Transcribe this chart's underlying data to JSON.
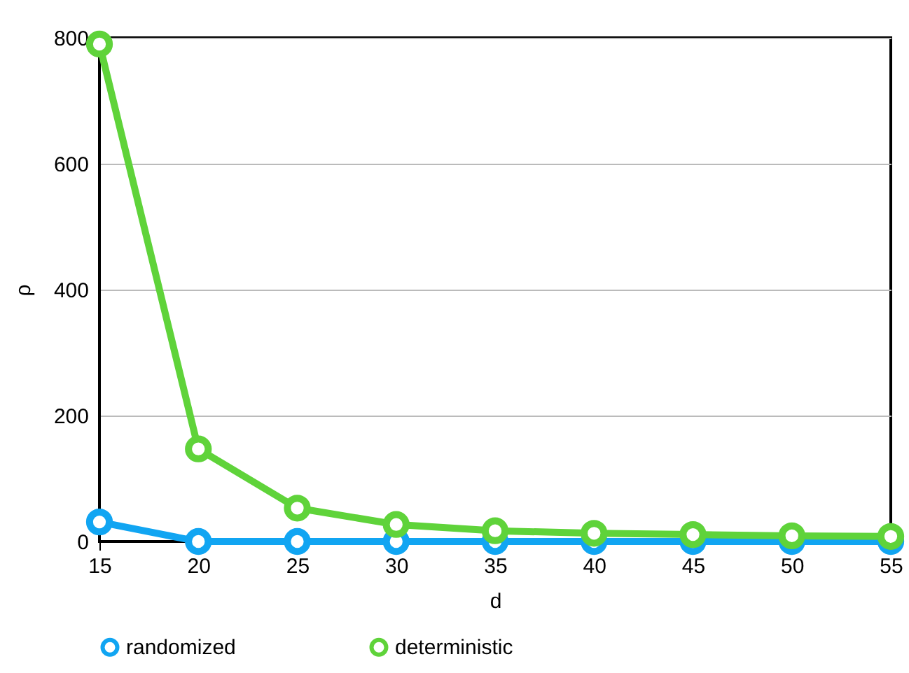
{
  "chart_data": {
    "type": "line",
    "xlabel": "d",
    "ylabel": "ρ",
    "x": [
      15,
      20,
      25,
      30,
      35,
      40,
      45,
      50,
      55
    ],
    "series": [
      {
        "name": "randomized",
        "color": "#11a5f2",
        "values": [
          31,
          0,
          0,
          0,
          0,
          0,
          0,
          0,
          0
        ]
      },
      {
        "name": "deterministic",
        "color": "#5fd33a",
        "values": [
          790,
          147,
          53,
          27,
          17,
          13,
          11,
          9,
          8
        ]
      }
    ],
    "xlim": [
      15,
      55
    ],
    "xticks": [
      15,
      20,
      25,
      30,
      35,
      40,
      45,
      50,
      55
    ],
    "ylim": [
      0,
      800
    ],
    "yticks": [
      0,
      200,
      400,
      600,
      800
    ],
    "grid": "y",
    "legend": "bottom",
    "marker": "circle",
    "line_style": "solid"
  }
}
